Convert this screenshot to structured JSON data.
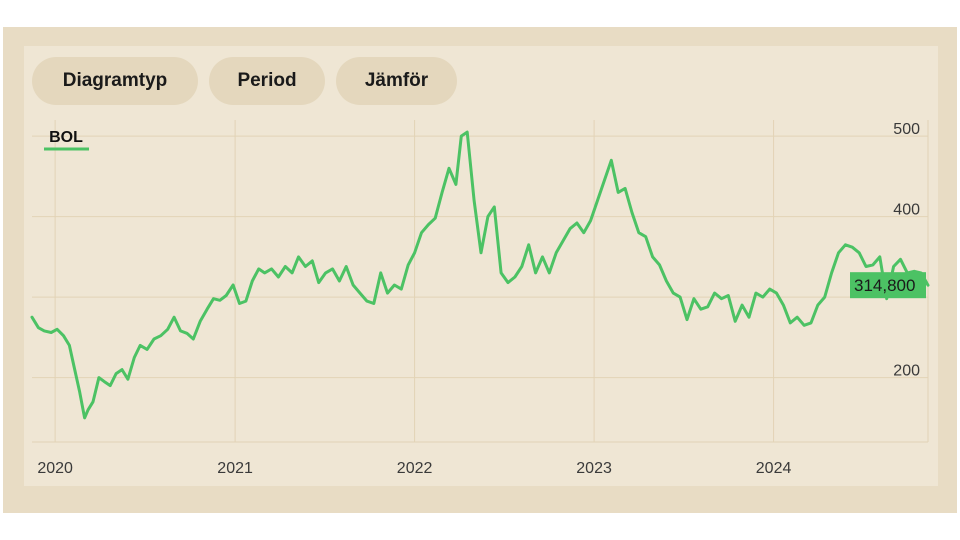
{
  "toolbar": {
    "buttons": [
      "Diagramtyp",
      "Period",
      "Jämför"
    ]
  },
  "colors": {
    "line": "#4cc264",
    "grid": "#e2d3b6",
    "background": "#efe6d4",
    "frame": "#e8dcc4",
    "button": "#e4d7bd"
  },
  "chart_data": {
    "type": "line",
    "series": [
      {
        "name": "BOL",
        "last_value_label": "314,800",
        "points": [
          [
            "2019-11-15",
            275
          ],
          [
            "2019-11-28",
            262
          ],
          [
            "2019-12-10",
            258
          ],
          [
            "2019-12-24",
            256
          ],
          [
            "2020-01-05",
            260
          ],
          [
            "2020-01-18",
            252
          ],
          [
            "2020-01-30",
            240
          ],
          [
            "2020-02-08",
            215
          ],
          [
            "2020-02-20",
            182
          ],
          [
            "2020-03-01",
            150
          ],
          [
            "2020-03-08",
            160
          ],
          [
            "2020-03-18",
            170
          ],
          [
            "2020-03-30",
            200
          ],
          [
            "2020-04-10",
            195
          ],
          [
            "2020-04-22",
            190
          ],
          [
            "2020-05-04",
            205
          ],
          [
            "2020-05-16",
            210
          ],
          [
            "2020-05-28",
            198
          ],
          [
            "2020-06-10",
            225
          ],
          [
            "2020-06-22",
            240
          ],
          [
            "2020-07-06",
            235
          ],
          [
            "2020-07-20",
            248
          ],
          [
            "2020-08-03",
            252
          ],
          [
            "2020-08-17",
            260
          ],
          [
            "2020-08-30",
            275
          ],
          [
            "2020-09-12",
            258
          ],
          [
            "2020-09-25",
            255
          ],
          [
            "2020-10-08",
            248
          ],
          [
            "2020-10-22",
            270
          ],
          [
            "2020-11-05",
            285
          ],
          [
            "2020-11-18",
            298
          ],
          [
            "2020-12-01",
            296
          ],
          [
            "2020-12-14",
            302
          ],
          [
            "2020-12-28",
            315
          ],
          [
            "2021-01-10",
            292
          ],
          [
            "2021-01-23",
            295
          ],
          [
            "2021-02-05",
            320
          ],
          [
            "2021-02-18",
            335
          ],
          [
            "2021-03-02",
            330
          ],
          [
            "2021-03-16",
            335
          ],
          [
            "2021-03-30",
            325
          ],
          [
            "2021-04-13",
            338
          ],
          [
            "2021-04-27",
            330
          ],
          [
            "2021-05-10",
            350
          ],
          [
            "2021-05-24",
            338
          ],
          [
            "2021-06-07",
            345
          ],
          [
            "2021-06-20",
            318
          ],
          [
            "2021-07-04",
            330
          ],
          [
            "2021-07-18",
            335
          ],
          [
            "2021-08-01",
            320
          ],
          [
            "2021-08-15",
            338
          ],
          [
            "2021-08-29",
            315
          ],
          [
            "2021-09-12",
            305
          ],
          [
            "2021-09-26",
            295
          ],
          [
            "2021-10-10",
            292
          ],
          [
            "2021-10-24",
            330
          ],
          [
            "2021-11-07",
            305
          ],
          [
            "2021-11-21",
            315
          ],
          [
            "2021-12-05",
            310
          ],
          [
            "2021-12-19",
            340
          ],
          [
            "2022-01-01",
            355
          ],
          [
            "2022-01-15",
            380
          ],
          [
            "2022-01-29",
            390
          ],
          [
            "2022-02-12",
            398
          ],
          [
            "2022-02-26",
            430
          ],
          [
            "2022-03-12",
            460
          ],
          [
            "2022-03-26",
            440
          ],
          [
            "2022-04-06",
            500
          ],
          [
            "2022-04-18",
            505
          ],
          [
            "2022-05-02",
            420
          ],
          [
            "2022-05-16",
            355
          ],
          [
            "2022-05-30",
            400
          ],
          [
            "2022-06-12",
            412
          ],
          [
            "2022-06-26",
            330
          ],
          [
            "2022-07-10",
            318
          ],
          [
            "2022-07-24",
            325
          ],
          [
            "2022-08-07",
            338
          ],
          [
            "2022-08-21",
            365
          ],
          [
            "2022-09-04",
            330
          ],
          [
            "2022-09-18",
            350
          ],
          [
            "2022-10-02",
            330
          ],
          [
            "2022-10-16",
            355
          ],
          [
            "2022-10-30",
            370
          ],
          [
            "2022-11-13",
            385
          ],
          [
            "2022-11-27",
            392
          ],
          [
            "2022-12-11",
            380
          ],
          [
            "2022-12-25",
            395
          ],
          [
            "2023-01-08",
            420
          ],
          [
            "2023-01-22",
            445
          ],
          [
            "2023-02-05",
            470
          ],
          [
            "2023-02-19",
            430
          ],
          [
            "2023-03-05",
            435
          ],
          [
            "2023-03-19",
            405
          ],
          [
            "2023-04-02",
            380
          ],
          [
            "2023-04-16",
            375
          ],
          [
            "2023-04-30",
            350
          ],
          [
            "2023-05-14",
            340
          ],
          [
            "2023-05-28",
            320
          ],
          [
            "2023-06-11",
            305
          ],
          [
            "2023-06-25",
            300
          ],
          [
            "2023-07-09",
            272
          ],
          [
            "2023-07-23",
            298
          ],
          [
            "2023-08-06",
            285
          ],
          [
            "2023-08-20",
            288
          ],
          [
            "2023-09-03",
            305
          ],
          [
            "2023-09-17",
            298
          ],
          [
            "2023-10-01",
            302
          ],
          [
            "2023-10-15",
            270
          ],
          [
            "2023-10-29",
            290
          ],
          [
            "2023-11-12",
            275
          ],
          [
            "2023-11-26",
            305
          ],
          [
            "2023-12-10",
            300
          ],
          [
            "2023-12-24",
            310
          ],
          [
            "2024-01-07",
            305
          ],
          [
            "2024-01-21",
            290
          ],
          [
            "2024-02-04",
            268
          ],
          [
            "2024-02-18",
            275
          ],
          [
            "2024-03-03",
            265
          ],
          [
            "2024-03-17",
            268
          ],
          [
            "2024-03-31",
            290
          ],
          [
            "2024-04-14",
            300
          ],
          [
            "2024-04-28",
            330
          ],
          [
            "2024-05-12",
            355
          ],
          [
            "2024-05-26",
            365
          ],
          [
            "2024-06-09",
            362
          ],
          [
            "2024-06-23",
            355
          ],
          [
            "2024-07-07",
            338
          ],
          [
            "2024-07-21",
            340
          ],
          [
            "2024-08-04",
            350
          ],
          [
            "2024-08-18",
            298
          ],
          [
            "2024-09-01",
            338
          ],
          [
            "2024-09-15",
            347
          ],
          [
            "2024-09-29",
            330
          ],
          [
            "2024-10-13",
            332
          ],
          [
            "2024-10-27",
            330
          ],
          [
            "2024-11-10",
            314.8
          ]
        ]
      }
    ],
    "x_ticks": [
      "2020",
      "2021",
      "2022",
      "2023",
      "2024"
    ],
    "y_ticks": [
      200,
      300,
      400,
      500
    ],
    "y_tick_labels": [
      "200",
      "",
      "400",
      "500"
    ],
    "xlim": [
      "2019-11-15",
      "2024-11-10"
    ],
    "ylim": [
      120,
      520
    ],
    "grid": true
  }
}
